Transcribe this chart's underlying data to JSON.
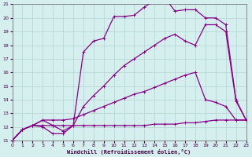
{
  "xlabel": "Windchill (Refroidissement éolien,°C)",
  "bg_color": "#d5efef",
  "grid_color": "#b8d8d8",
  "line_color": "#880088",
  "xlim": [
    0,
    23
  ],
  "ylim": [
    11,
    21
  ],
  "yticks": [
    11,
    12,
    13,
    14,
    15,
    16,
    17,
    18,
    19,
    20,
    21
  ],
  "xticks": [
    0,
    1,
    2,
    3,
    4,
    5,
    6,
    7,
    8,
    9,
    10,
    11,
    12,
    13,
    14,
    15,
    16,
    17,
    18,
    19,
    20,
    21,
    22,
    23
  ],
  "line_flat_x": [
    0,
    1,
    2,
    3,
    4,
    5,
    6,
    7,
    8,
    9,
    10,
    11,
    12,
    13,
    14,
    15,
    16,
    17,
    18,
    19,
    20,
    21,
    22,
    23
  ],
  "line_flat_y": [
    11.0,
    11.8,
    12.1,
    12.1,
    12.1,
    12.1,
    12.1,
    12.1,
    12.1,
    12.1,
    12.1,
    12.1,
    12.1,
    12.1,
    12.2,
    12.2,
    12.2,
    12.3,
    12.3,
    12.4,
    12.5,
    12.5,
    12.5,
    12.5
  ],
  "line_slow_x": [
    0,
    1,
    2,
    3,
    4,
    5,
    6,
    7,
    8,
    9,
    10,
    11,
    12,
    13,
    14,
    15,
    16,
    17,
    18,
    19,
    20,
    21,
    22,
    23
  ],
  "line_slow_y": [
    11.0,
    11.8,
    12.1,
    12.5,
    12.5,
    12.5,
    12.6,
    12.9,
    13.2,
    13.5,
    13.8,
    14.1,
    14.4,
    14.6,
    14.9,
    15.2,
    15.5,
    15.8,
    16.0,
    14.0,
    13.8,
    13.5,
    12.5,
    12.5
  ],
  "line_mid_x": [
    0,
    1,
    2,
    3,
    4,
    5,
    6,
    7,
    8,
    9,
    10,
    11,
    12,
    13,
    14,
    15,
    16,
    17,
    18,
    19,
    20,
    21,
    22,
    23
  ],
  "line_mid_y": [
    11.0,
    11.8,
    12.1,
    12.5,
    12.1,
    11.7,
    12.1,
    13.5,
    14.3,
    15.0,
    15.8,
    16.5,
    17.0,
    17.5,
    18.0,
    18.5,
    18.8,
    18.3,
    18.0,
    19.5,
    19.5,
    19.0,
    13.9,
    12.5
  ],
  "line_top_x": [
    0,
    1,
    2,
    3,
    4,
    5,
    6,
    7,
    8,
    9,
    10,
    11,
    12,
    13,
    14,
    15,
    16,
    17,
    18,
    19,
    20,
    21,
    22,
    23
  ],
  "line_top_y": [
    11.0,
    11.8,
    12.1,
    12.0,
    11.5,
    11.5,
    12.1,
    17.5,
    18.3,
    18.5,
    20.1,
    20.1,
    20.2,
    20.8,
    21.3,
    21.5,
    20.5,
    20.6,
    20.6,
    20.0,
    20.0,
    19.5,
    14.0,
    12.5
  ]
}
